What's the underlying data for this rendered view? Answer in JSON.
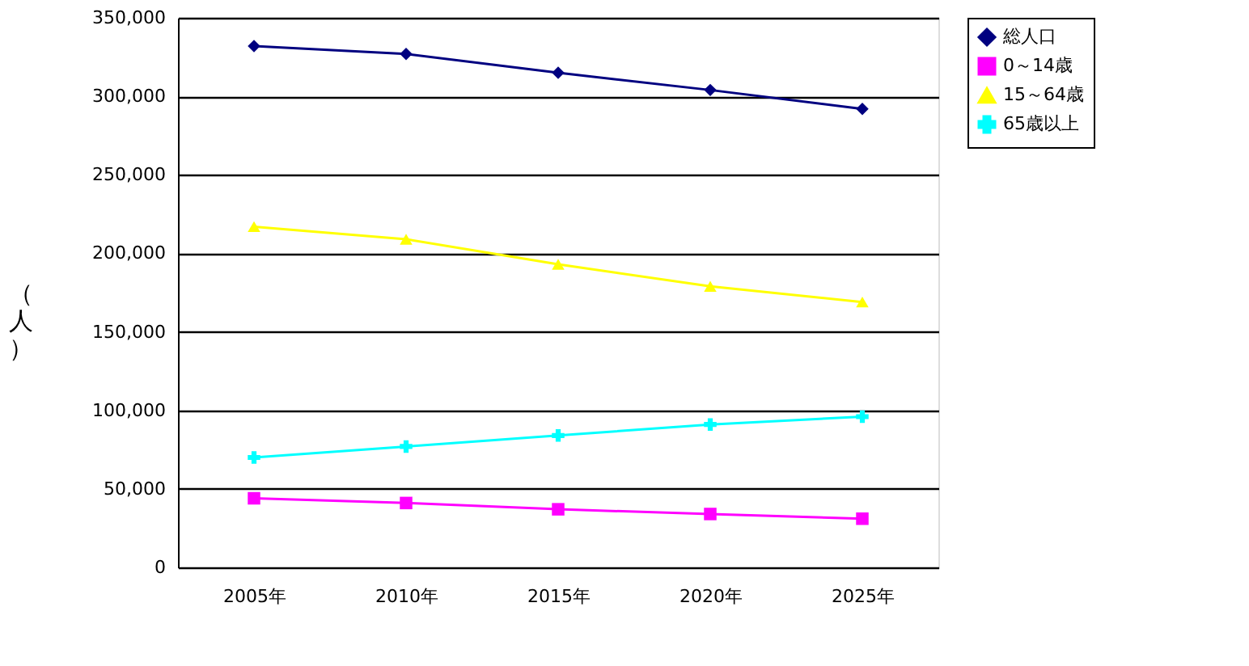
{
  "chart_data": {
    "type": "line",
    "ylabel": "（人）",
    "categories": [
      "2005年",
      "2010年",
      "2015年",
      "2020年",
      "2025年"
    ],
    "series": [
      {
        "name": "総人口",
        "color": "#000080",
        "marker": "diamond",
        "values": [
          332000,
          327000,
          315000,
          304000,
          292000
        ]
      },
      {
        "name": "0～14歳",
        "color": "#ff00ff",
        "marker": "square",
        "values": [
          44000,
          41000,
          37000,
          34000,
          31000
        ]
      },
      {
        "name": "15～64歳",
        "color": "#ffff00",
        "marker": "triangle",
        "values": [
          217000,
          209000,
          193000,
          179000,
          169000
        ]
      },
      {
        "name": "65歳以上",
        "color": "#00ffff",
        "marker": "cross",
        "values": [
          70000,
          77000,
          84000,
          91000,
          96000
        ]
      }
    ],
    "ylim": [
      0,
      350000
    ],
    "yticks": [
      0,
      {
        "value": 50000,
        "label": "50,000"
      },
      {
        "value": 100000,
        "label": "100,000"
      },
      {
        "value": 150000,
        "label": "150,000"
      },
      {
        "value": 200000,
        "label": "200,000"
      },
      {
        "value": 250000,
        "label": "250,000"
      },
      {
        "value": 300000,
        "label": "300,000"
      },
      {
        "value": 350000,
        "label": "350,000"
      }
    ],
    "grid": "y",
    "legend": "right"
  }
}
